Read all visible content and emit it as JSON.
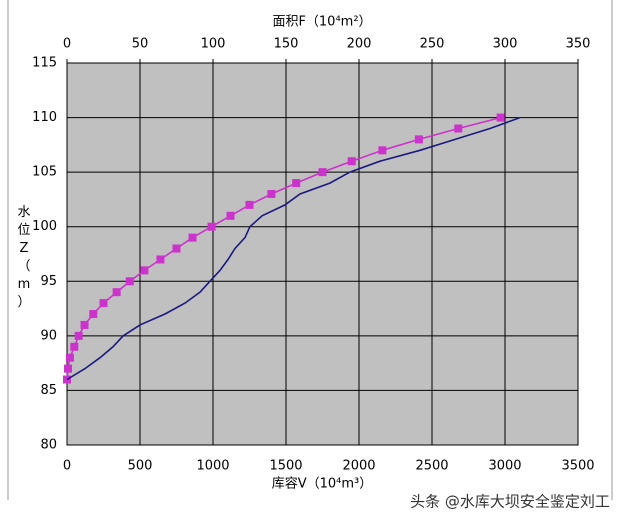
{
  "chart_data": {
    "type": "line",
    "x_label": "库容V（10⁴m³）",
    "x2_label": "面积F（10⁴m²）",
    "y_label": "水位Z（m）",
    "xlim": [
      0,
      3500
    ],
    "xticks": [
      0,
      500,
      1000,
      1500,
      2000,
      2500,
      3000,
      3500
    ],
    "x2lim": [
      0,
      350
    ],
    "x2ticks": [
      0,
      50,
      100,
      150,
      200,
      250,
      300,
      350
    ],
    "ylim": [
      80,
      115
    ],
    "yticks": [
      80,
      85,
      90,
      95,
      100,
      105,
      110,
      115
    ],
    "grid": true,
    "watermark": "头条 @水库大坝安全鉴定刘工",
    "series": [
      {
        "color": "#cc33cc",
        "axis": "x2",
        "marker": "square",
        "x": [
          0,
          0.7,
          2,
          5,
          8,
          12,
          18,
          25,
          34,
          43,
          53,
          64,
          75,
          86,
          99,
          112,
          125,
          140,
          157,
          175,
          195,
          216,
          241,
          268,
          297
        ],
        "y": [
          86,
          87,
          88,
          89,
          90,
          91,
          92,
          93,
          94,
          95,
          96,
          97,
          98,
          99,
          100,
          101,
          102,
          103,
          104,
          105,
          106,
          107,
          108,
          109,
          110
        ]
      },
      {
        "color": "#1a1a80",
        "axis": "x",
        "marker": "none",
        "x": [
          0,
          123,
          226,
          315,
          384,
          500,
          671,
          808,
          911,
          979,
          1048,
          1103,
          1151,
          1219,
          1253,
          1336,
          1493,
          1596,
          1801,
          1938,
          2144,
          2418,
          2658,
          2897,
          3103
        ],
        "y": [
          86,
          87,
          88,
          89,
          90,
          91,
          92,
          93,
          94,
          95,
          96,
          97,
          98,
          99,
          100,
          101,
          102,
          103,
          104,
          105,
          106,
          107,
          108,
          109,
          110
        ]
      }
    ]
  }
}
